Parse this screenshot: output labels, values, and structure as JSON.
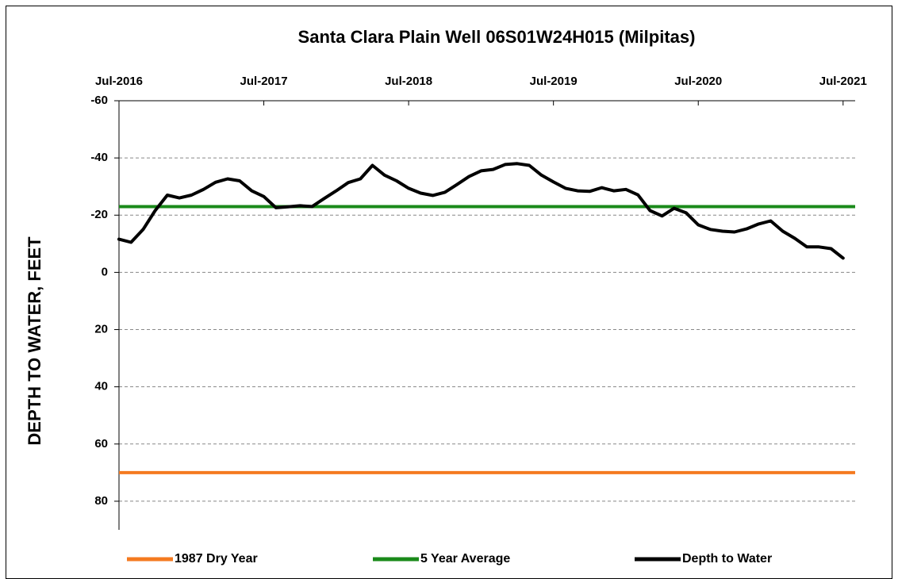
{
  "chart_data": {
    "type": "line",
    "title": "Santa Clara Plain Well 06S01W24H015 (Milpitas)",
    "y_label": "DEPTH TO WATER, FEET",
    "y_reversed": true,
    "ylim": [
      -60,
      90
    ],
    "yticks": [
      -60,
      -40,
      -20,
      0,
      20,
      40,
      60,
      80
    ],
    "grid": true,
    "xlim": [
      "2016-07",
      "2021-08"
    ],
    "xticks": [
      {
        "value": "2016-07",
        "label": "Jul-2016"
      },
      {
        "value": "2017-07",
        "label": "Jul-2017"
      },
      {
        "value": "2018-07",
        "label": "Jul-2018"
      },
      {
        "value": "2019-07",
        "label": "Jul-2019"
      },
      {
        "value": "2020-07",
        "label": "Jul-2020"
      },
      {
        "value": "2021-07",
        "label": "Jul-2021"
      }
    ],
    "legend": "bottom",
    "reference_lines": [
      {
        "name": "1987 Dry Year",
        "color": "#f47a20",
        "value": 70
      },
      {
        "name": "5 Year Average",
        "color": "#1a8a1a",
        "value": -23
      }
    ],
    "x": [
      "2016-07",
      "2016-08",
      "2016-09",
      "2016-10",
      "2016-11",
      "2016-12",
      "2017-01",
      "2017-02",
      "2017-03",
      "2017-04",
      "2017-05",
      "2017-06",
      "2017-07",
      "2017-08",
      "2017-09",
      "2017-10",
      "2017-11",
      "2017-12",
      "2018-01",
      "2018-02",
      "2018-03",
      "2018-04",
      "2018-05",
      "2018-06",
      "2018-07",
      "2018-08",
      "2018-09",
      "2018-10",
      "2018-11",
      "2018-12",
      "2019-01",
      "2019-02",
      "2019-03",
      "2019-04",
      "2019-05",
      "2019-06",
      "2019-07",
      "2019-08",
      "2019-09",
      "2019-10",
      "2019-11",
      "2019-12",
      "2020-01",
      "2020-02",
      "2020-03",
      "2020-04",
      "2020-05",
      "2020-06",
      "2020-07",
      "2020-08",
      "2020-09",
      "2020-10",
      "2020-11",
      "2020-12",
      "2021-01",
      "2021-02",
      "2021-03",
      "2021-04",
      "2021-05",
      "2021-06",
      "2021-07"
    ],
    "series": [
      {
        "name": "Depth to Water",
        "color": "#000000",
        "values": [
          -11.6,
          -10.5,
          -15,
          -21.6,
          -27,
          -26,
          -27,
          -29,
          -31.5,
          -32.7,
          -32,
          -28.5,
          -26.5,
          -22.6,
          -22.9,
          -23.3,
          -23,
          -25.8,
          -28.5,
          -31.4,
          -32.7,
          -37.4,
          -34,
          -32,
          -29.4,
          -27.7,
          -26.9,
          -28,
          -30.7,
          -33.5,
          -35.5,
          -36,
          -37.7,
          -38,
          -37.4,
          -34,
          -31.6,
          -29.4,
          -28.5,
          -28.3,
          -29.6,
          -28.5,
          -29,
          -27.1,
          -21.6,
          -19.7,
          -22.4,
          -20.8,
          -16.6,
          -15,
          -14.4,
          -14.1,
          -15.2,
          -16.9,
          -18,
          -14.4,
          -11.9,
          -8.9,
          -8.9,
          -8.3,
          -5
        ]
      }
    ]
  }
}
